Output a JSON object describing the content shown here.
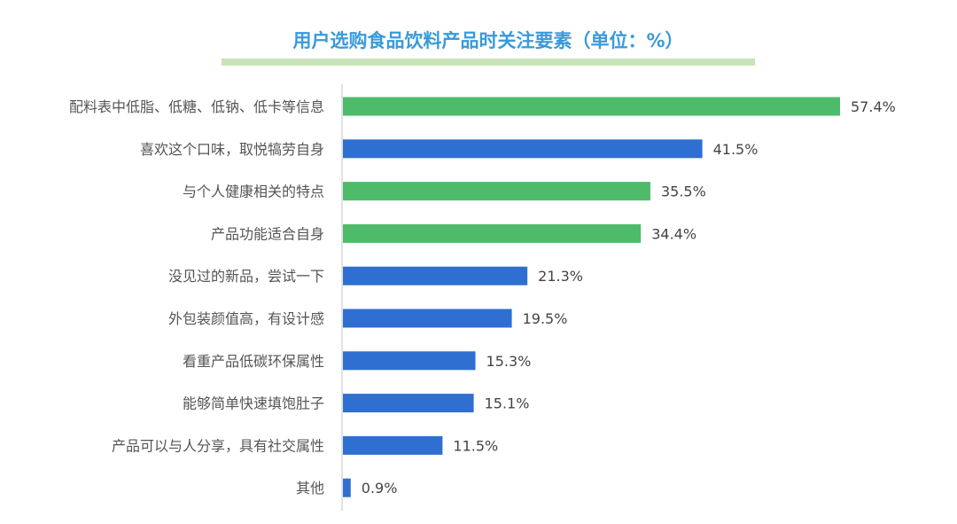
{
  "chart_data": {
    "type": "bar",
    "orientation": "horizontal",
    "title": "用户选购食品饮料产品时关注要素（单位：%）",
    "categories": [
      "配料表中低脂、低糖、低钠、低卡等信息",
      "喜欢这个口味，取悦犒劳自身",
      "与个人健康相关的特点",
      "产品功能适合自身",
      "没见过的新品，尝试一下",
      "外包装颜值高，有设计感",
      "看重产品低碳环保属性",
      "能够简单快速填饱肚子",
      "产品可以与人分享，具有社交属性",
      "其他"
    ],
    "values": [
      57.4,
      41.5,
      35.5,
      34.4,
      21.3,
      19.5,
      15.3,
      15.1,
      11.5,
      0.9
    ],
    "labels": [
      "57.4%",
      "41.5%",
      "35.5%",
      "34.4%",
      "21.3%",
      "19.5%",
      "15.3%",
      "15.1%",
      "11.5%",
      "0.9%"
    ],
    "bar_colors": [
      "#4dbb6a",
      "#2f6fd1",
      "#4dbb6a",
      "#4dbb6a",
      "#2f6fd1",
      "#2f6fd1",
      "#2f6fd1",
      "#2f6fd1",
      "#2f6fd1",
      "#2f6fd1"
    ],
    "xlim": [
      0,
      60
    ],
    "grid": false,
    "title_color": "#3a9ad9",
    "title_underline_color": "#c9e4b8"
  }
}
